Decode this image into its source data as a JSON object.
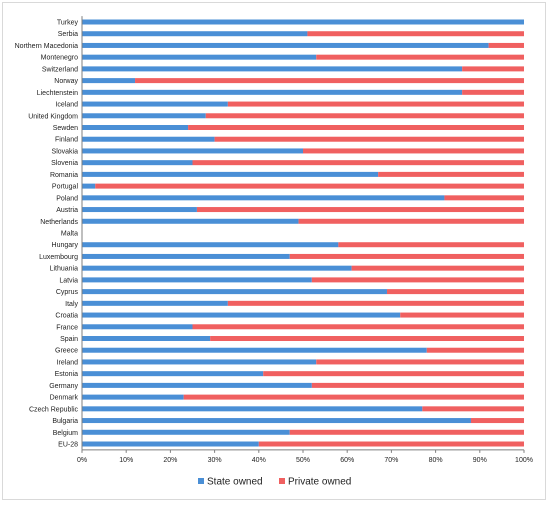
{
  "chart_data": {
    "type": "bar",
    "orientation": "horizontal",
    "stacked": true,
    "percent_stacked": true,
    "title": "",
    "xlabel": "",
    "ylabel": "",
    "xlim": [
      0,
      100
    ],
    "x_ticks": [
      "0%",
      "10%",
      "20%",
      "30%",
      "40%",
      "50%",
      "60%",
      "70%",
      "80%",
      "90%",
      "100%"
    ],
    "grid": false,
    "legend_position": "bottom",
    "categories": [
      "Turkey",
      "Serbia",
      "Northern Macedonia",
      "Montenegro",
      "Switzerland",
      "Norway",
      "Liechtenstein",
      "Iceland",
      "United Kingdom",
      "Sewden",
      "Finland",
      "Slovakia",
      "Slovenia",
      "Romania",
      "Portugal",
      "Poland",
      "Austria",
      "Netherlands",
      "Malta",
      "Hungary",
      "Luxembourg",
      "Lithuania",
      "Latvia",
      "Cyprus",
      "Italy",
      "Croatia",
      "France",
      "Spain",
      "Greece",
      "Ireland",
      "Estonia",
      "Germany",
      "Denmark",
      "Czech Republic",
      "Bulgaria",
      "Belgium",
      "EU-28"
    ],
    "series": [
      {
        "name": "State owned",
        "color": "#4a8fd6",
        "values": [
          100,
          51,
          92,
          53,
          86,
          12,
          86,
          33,
          28,
          24,
          30,
          50,
          25,
          67,
          3,
          82,
          26,
          49,
          0,
          58,
          47,
          61,
          52,
          69,
          33,
          72,
          25,
          29,
          78,
          53,
          41,
          52,
          23,
          77,
          88,
          47,
          40
        ]
      },
      {
        "name": "Private owned",
        "color": "#f06060",
        "values": [
          0,
          49,
          8,
          47,
          14,
          88,
          14,
          67,
          72,
          76,
          70,
          50,
          75,
          33,
          97,
          18,
          74,
          51,
          0,
          42,
          53,
          39,
          48,
          31,
          67,
          28,
          75,
          71,
          22,
          47,
          59,
          48,
          77,
          23,
          12,
          53,
          60
        ]
      }
    ]
  }
}
